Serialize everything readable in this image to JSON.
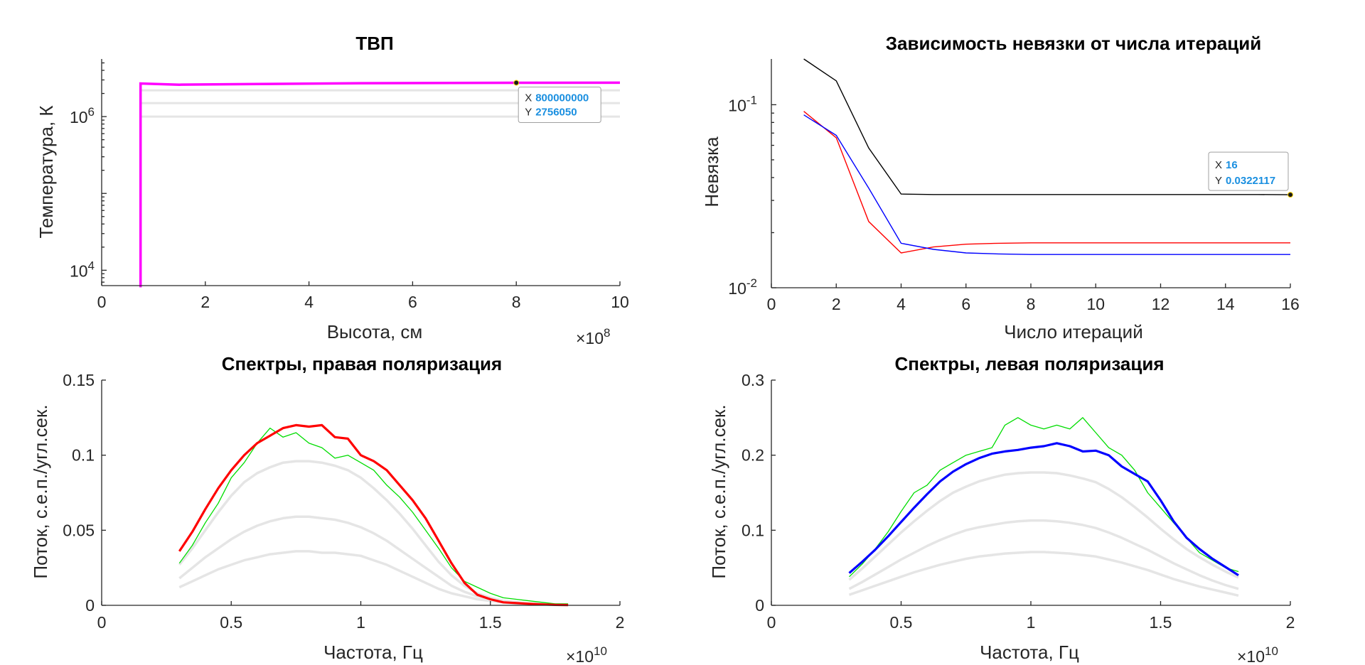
{
  "chart_data": [
    {
      "type": "line",
      "title": "ТВП",
      "xlabel": "Высота, см",
      "ylabel": "Температура, К",
      "x_exponent": "×10^8",
      "xlim": [
        0,
        1000000000
      ],
      "ylim_log10": [
        3.8,
        6.75
      ],
      "y_scale": "log",
      "xticks": [
        0,
        2,
        4,
        6,
        8,
        10
      ],
      "yticks": [
        {
          "base": "10",
          "exp": "4",
          "value": 10000
        },
        {
          "base": "10",
          "exp": "6",
          "value": 1000000
        }
      ],
      "series": [
        {
          "color": "#e5e5e5",
          "x": [
            75000000,
            1000000000
          ],
          "y": [
            1000000,
            1000000
          ]
        },
        {
          "color": "#e5e5e5",
          "x": [
            75000000,
            1000000000
          ],
          "y": [
            1500000,
            1500000
          ]
        },
        {
          "color": "#e5e5e5",
          "x": [
            75000000,
            1000000000
          ],
          "y": [
            2200000,
            2200000
          ]
        },
        {
          "color": "#ff00ff",
          "x": [
            75000000,
            75000000,
            150000000,
            300000000,
            500000000,
            800000000,
            1000000000
          ],
          "y": [
            6000,
            2700000,
            2600000,
            2650000,
            2720000,
            2756050,
            2760000
          ]
        }
      ],
      "datatip": {
        "x_label": "X",
        "x_value": "800000000",
        "y_label": "Y",
        "y_value": "2756050",
        "x": 800000000,
        "y": 2756050
      }
    },
    {
      "type": "line",
      "title": "Зависимость невязки от числа итераций",
      "xlabel": "Число итераций",
      "ylabel": "Невязка",
      "xlim": [
        0,
        16
      ],
      "ylim_log10": [
        -2,
        -0.75
      ],
      "y_scale": "log",
      "xticks": [
        0,
        2,
        4,
        6,
        8,
        10,
        12,
        14,
        16
      ],
      "yticks": [
        {
          "base": "10",
          "exp": "-2",
          "value": 0.01
        },
        {
          "base": "10",
          "exp": "-1",
          "value": 0.1
        }
      ],
      "series": [
        {
          "color": "#000000",
          "x": [
            1,
            2,
            3,
            4,
            5,
            6,
            7,
            8,
            9,
            10,
            11,
            12,
            13,
            14,
            15,
            16
          ],
          "y": [
            0.18,
            0.135,
            0.058,
            0.0325,
            0.0323,
            0.0323,
            0.0323,
            0.0323,
            0.0323,
            0.0323,
            0.0323,
            0.0323,
            0.0323,
            0.0323,
            0.0323,
            0.0322117
          ]
        },
        {
          "color": "#ff0000",
          "x": [
            1,
            2,
            3,
            4,
            5,
            6,
            7,
            8,
            9,
            10,
            11,
            12,
            13,
            14,
            15,
            16
          ],
          "y": [
            0.092,
            0.066,
            0.023,
            0.0155,
            0.0167,
            0.0173,
            0.0175,
            0.0176,
            0.0176,
            0.0176,
            0.0176,
            0.0176,
            0.0176,
            0.0176,
            0.0176,
            0.0176
          ]
        },
        {
          "color": "#0000ff",
          "x": [
            1,
            2,
            3,
            4,
            5,
            6,
            7,
            8,
            9,
            10,
            11,
            12,
            13,
            14,
            15,
            16
          ],
          "y": [
            0.088,
            0.068,
            0.035,
            0.0175,
            0.0162,
            0.0155,
            0.0153,
            0.0152,
            0.0152,
            0.0152,
            0.0152,
            0.0152,
            0.0152,
            0.0152,
            0.0152,
            0.0152
          ]
        }
      ],
      "datatip": {
        "x_label": "X",
        "x_value": "16",
        "y_label": "Y",
        "y_value": "0.0322117",
        "x": 16,
        "y": 0.0322117
      }
    },
    {
      "type": "line",
      "title": "Спектры, правая поляризация",
      "xlabel": "Частота, Гц",
      "ylabel": "Поток, с.е.п./угл.сек.",
      "x_exponent": "×10^10",
      "xlim": [
        0,
        20000000000
      ],
      "ylim": [
        0,
        0.15
      ],
      "xticks": [
        "0",
        "0.5",
        "1",
        "1.5",
        "2"
      ],
      "yticks": [
        "0",
        "0.05",
        "0.1",
        "0.15"
      ],
      "x": [
        3,
        3.5,
        4,
        4.5,
        5,
        5.5,
        6,
        6.5,
        7,
        7.5,
        8,
        8.5,
        9,
        9.5,
        10,
        10.5,
        11,
        11.5,
        12,
        12.5,
        13,
        13.5,
        14,
        14.5,
        15,
        15.5,
        16,
        16.5,
        17,
        17.5,
        18
      ],
      "x_units_note": "×10^9 Hz",
      "series": [
        {
          "color": "#e5e5e5",
          "values": [
            0.012,
            0.016,
            0.02,
            0.024,
            0.027,
            0.03,
            0.032,
            0.034,
            0.035,
            0.036,
            0.036,
            0.035,
            0.035,
            0.034,
            0.033,
            0.03,
            0.027,
            0.023,
            0.019,
            0.015,
            0.011,
            0.008,
            0.006,
            0.004,
            0.003,
            0.002,
            0.001,
            0.001,
            0.0005,
            0.0003,
            0.0002
          ]
        },
        {
          "color": "#e5e5e5",
          "values": [
            0.018,
            0.025,
            0.032,
            0.038,
            0.044,
            0.049,
            0.053,
            0.056,
            0.058,
            0.059,
            0.059,
            0.058,
            0.057,
            0.055,
            0.052,
            0.048,
            0.043,
            0.037,
            0.031,
            0.025,
            0.019,
            0.013,
            0.009,
            0.006,
            0.004,
            0.003,
            0.002,
            0.001,
            0.0008,
            0.0005,
            0.0003
          ]
        },
        {
          "color": "#e5e5e5",
          "values": [
            0.027,
            0.038,
            0.05,
            0.062,
            0.073,
            0.082,
            0.088,
            0.092,
            0.095,
            0.096,
            0.096,
            0.095,
            0.093,
            0.09,
            0.085,
            0.078,
            0.07,
            0.061,
            0.051,
            0.04,
            0.029,
            0.02,
            0.013,
            0.008,
            0.005,
            0.003,
            0.002,
            0.001,
            0.0008,
            0.0005,
            0.0003
          ]
        },
        {
          "color": "#00dd00",
          "values": [
            0.028,
            0.04,
            0.055,
            0.068,
            0.085,
            0.095,
            0.108,
            0.118,
            0.112,
            0.115,
            0.108,
            0.105,
            0.098,
            0.1,
            0.095,
            0.09,
            0.08,
            0.072,
            0.062,
            0.05,
            0.038,
            0.025,
            0.016,
            0.012,
            0.008,
            0.005,
            0.004,
            0.003,
            0.002,
            0.001,
            0.001
          ]
        },
        {
          "color": "#ff0000",
          "values": [
            0.036,
            0.049,
            0.064,
            0.078,
            0.09,
            0.1,
            0.108,
            0.113,
            0.118,
            0.12,
            0.119,
            0.12,
            0.112,
            0.111,
            0.1,
            0.096,
            0.09,
            0.08,
            0.07,
            0.058,
            0.043,
            0.028,
            0.015,
            0.007,
            0.004,
            0.002,
            0.0015,
            0.001,
            0.0006,
            0.0003,
            0.0002
          ]
        }
      ]
    },
    {
      "type": "line",
      "title": "Спектры, левая поляризация",
      "xlabel": "Частота, Гц",
      "ylabel": "Поток, с.е.п./угл.сек.",
      "x_exponent": "×10^10",
      "xlim": [
        0,
        20000000000
      ],
      "ylim": [
        0,
        0.3
      ],
      "xticks": [
        "0",
        "0.5",
        "1",
        "1.5",
        "2"
      ],
      "yticks": [
        "0",
        "0.1",
        "0.2",
        "0.3"
      ],
      "x": [
        3,
        3.5,
        4,
        4.5,
        5,
        5.5,
        6,
        6.5,
        7,
        7.5,
        8,
        8.5,
        9,
        9.5,
        10,
        10.5,
        11,
        11.5,
        12,
        12.5,
        13,
        13.5,
        14,
        14.5,
        15,
        15.5,
        16,
        16.5,
        17,
        17.5,
        18
      ],
      "x_units_note": "×10^9 Hz",
      "series": [
        {
          "color": "#e5e5e5",
          "values": [
            0.014,
            0.02,
            0.026,
            0.032,
            0.038,
            0.044,
            0.049,
            0.054,
            0.058,
            0.062,
            0.065,
            0.067,
            0.069,
            0.07,
            0.071,
            0.071,
            0.07,
            0.069,
            0.067,
            0.065,
            0.061,
            0.057,
            0.052,
            0.047,
            0.041,
            0.035,
            0.03,
            0.025,
            0.021,
            0.017,
            0.013
          ]
        },
        {
          "color": "#e5e5e5",
          "values": [
            0.022,
            0.031,
            0.041,
            0.051,
            0.061,
            0.07,
            0.079,
            0.087,
            0.094,
            0.1,
            0.104,
            0.107,
            0.11,
            0.112,
            0.113,
            0.113,
            0.112,
            0.11,
            0.107,
            0.103,
            0.097,
            0.09,
            0.082,
            0.074,
            0.065,
            0.056,
            0.048,
            0.04,
            0.033,
            0.027,
            0.022
          ]
        },
        {
          "color": "#e5e5e5",
          "values": [
            0.034,
            0.049,
            0.065,
            0.081,
            0.097,
            0.112,
            0.126,
            0.139,
            0.15,
            0.158,
            0.165,
            0.17,
            0.174,
            0.176,
            0.177,
            0.177,
            0.176,
            0.173,
            0.169,
            0.164,
            0.155,
            0.144,
            0.131,
            0.117,
            0.102,
            0.088,
            0.075,
            0.064,
            0.054,
            0.045,
            0.037
          ]
        },
        {
          "color": "#00dd00",
          "values": [
            0.038,
            0.055,
            0.075,
            0.098,
            0.125,
            0.15,
            0.16,
            0.18,
            0.19,
            0.2,
            0.205,
            0.21,
            0.24,
            0.25,
            0.24,
            0.235,
            0.24,
            0.235,
            0.25,
            0.23,
            0.21,
            0.2,
            0.18,
            0.15,
            0.13,
            0.11,
            0.09,
            0.07,
            0.06,
            0.05,
            0.045
          ]
        },
        {
          "color": "#0000ff",
          "values": [
            0.043,
            0.058,
            0.074,
            0.092,
            0.111,
            0.13,
            0.148,
            0.165,
            0.178,
            0.188,
            0.196,
            0.202,
            0.205,
            0.207,
            0.21,
            0.212,
            0.216,
            0.212,
            0.205,
            0.206,
            0.2,
            0.185,
            0.175,
            0.165,
            0.14,
            0.112,
            0.09,
            0.075,
            0.062,
            0.051,
            0.04
          ]
        }
      ]
    }
  ]
}
